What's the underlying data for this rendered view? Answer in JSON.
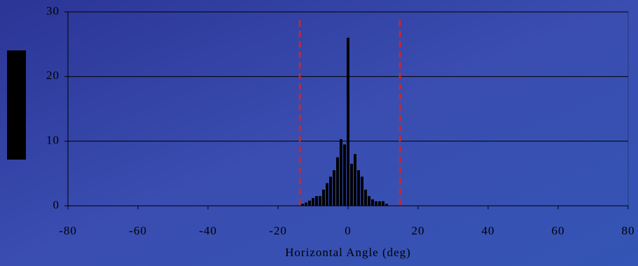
{
  "chart_data": {
    "type": "histogram",
    "x_label": "Horizontal Angle (deg)",
    "bins": [
      -13.5,
      -12.5,
      -11.5,
      -10.5,
      -9.5,
      -8.5,
      -7.5,
      -6.5,
      -5.5,
      -4.5,
      -3.5,
      -2.5,
      -1.5,
      -0.5,
      0.5,
      1.5,
      2.5,
      3.5,
      4.5,
      5.5,
      6.5,
      7.5,
      8.5,
      9.5,
      10.5,
      11.5
    ],
    "values": [
      0.3,
      0.5,
      0.8,
      1.2,
      1.5,
      1.5,
      2.5,
      3.5,
      4.5,
      5.5,
      7.5,
      10.3,
      9.5,
      26,
      6.5,
      8,
      5.5,
      4.5,
      2.5,
      1.5,
      1,
      0.7,
      0.7,
      0.7,
      0.3
    ],
    "color": "#000000",
    "xlim": [
      -80,
      80
    ],
    "xticks": [
      -80,
      -60,
      -40,
      -20,
      0,
      20,
      40,
      60,
      80
    ],
    "ylim": [
      0,
      30
    ],
    "yticks": [
      0,
      10,
      20,
      30
    ],
    "grid": true,
    "reference_lines": {
      "x": [
        -13.8,
        14.8
      ],
      "color": "#e0201c"
    }
  }
}
